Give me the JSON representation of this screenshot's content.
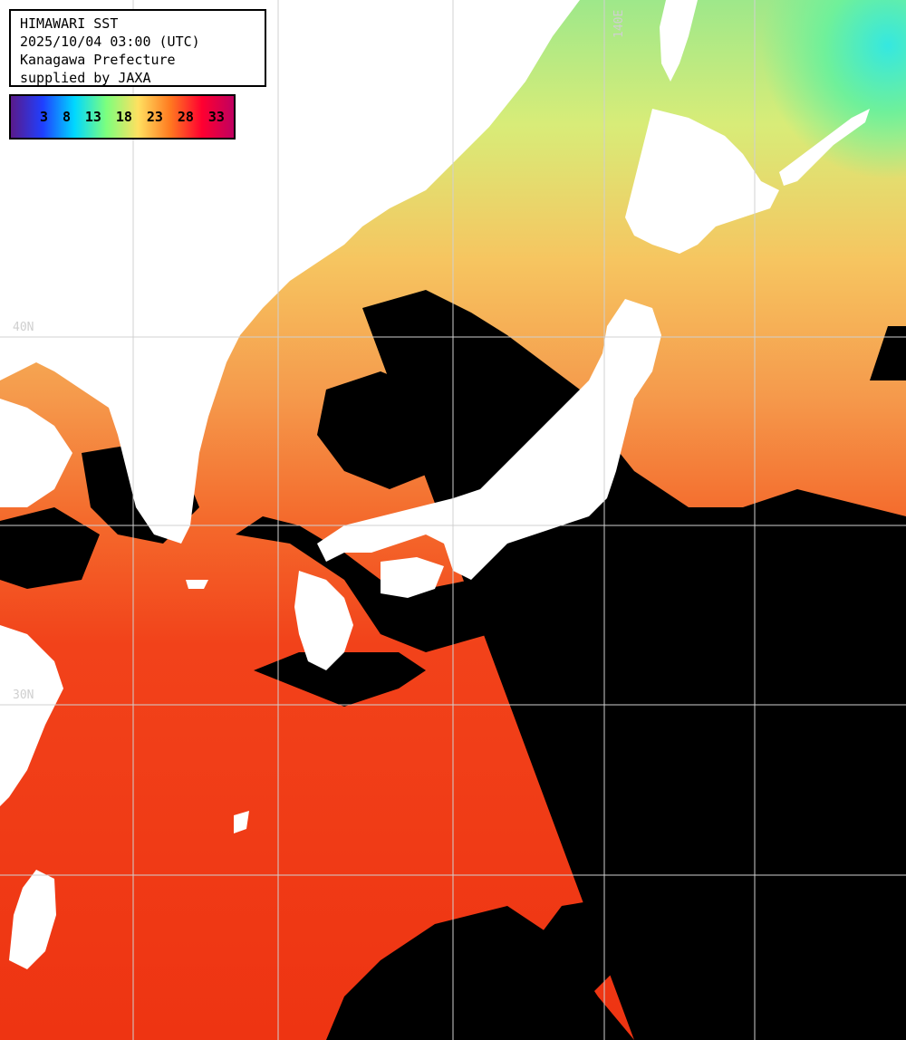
{
  "header": {
    "line1": "HIMAWARI SST",
    "line2": "2025/10/04 03:00 (UTC)",
    "line3": "Kanagawa Prefecture",
    "line4": "supplied by JAXA"
  },
  "colorbar": {
    "ticks": [
      "3",
      "8",
      "13",
      "18",
      "23",
      "28",
      "33"
    ],
    "colors": [
      "#5a1a8a",
      "#1f3fff",
      "#00d8ff",
      "#7dff7d",
      "#ffe060",
      "#ff7a20",
      "#ff0030",
      "#c00060"
    ]
  },
  "grid_labels": {
    "lon_140": "140E",
    "lat_40": "40N",
    "lat_30": "30N"
  },
  "colors": {
    "land": "#ffffff",
    "cloud": "#000000",
    "grid": "#d0d0d0",
    "warm_sea": "#f23a14",
    "mid_sea": "#f4a24f",
    "cool_sea": "#b8f07a",
    "cold_sea": "#40e6b4"
  }
}
